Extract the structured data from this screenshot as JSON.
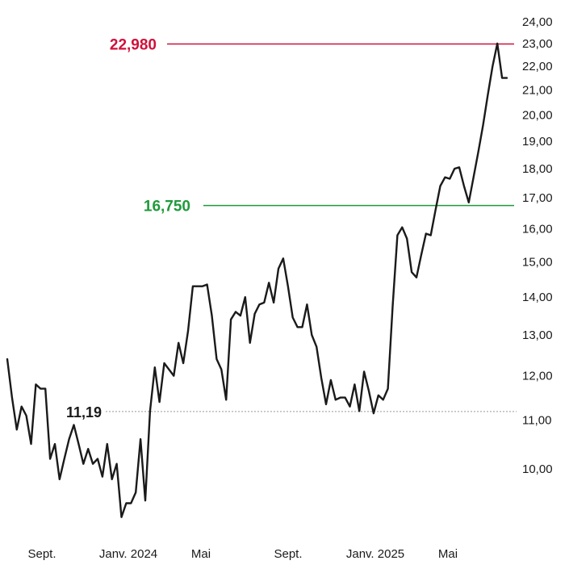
{
  "chart_data": {
    "type": "line",
    "x_tick_labels": [
      "Sept.",
      "Janv. 2024",
      "Mai",
      "Sept.",
      "Janv. 2025",
      "Mai"
    ],
    "y_tick_labels": [
      "24,00",
      "23,00",
      "22,00",
      "21,00",
      "20,00",
      "19,00",
      "18,00",
      "17,00",
      "16,00",
      "15,00",
      "14,00",
      "13,00",
      "12,00",
      "11,00",
      "10,00"
    ],
    "y_scale": "log",
    "ylim": [
      9.0,
      24.0
    ],
    "grid": false,
    "reference_lines": [
      {
        "label": "22,980",
        "value": 22.98,
        "color": "#d0103a"
      },
      {
        "label": "16,750",
        "value": 16.75,
        "color": "#1f9a3a"
      },
      {
        "label": "11,19",
        "value": 11.19,
        "color": "#999999",
        "dotted": true
      }
    ],
    "series": [
      {
        "color": "#1a1a1a",
        "values": [
          12.4,
          11.5,
          10.8,
          11.3,
          11.1,
          10.5,
          11.8,
          11.7,
          11.7,
          10.2,
          10.5,
          9.8,
          10.2,
          10.6,
          10.9,
          10.5,
          10.1,
          10.4,
          10.1,
          10.2,
          9.85,
          10.5,
          9.8,
          10.1,
          9.1,
          9.35,
          9.35,
          9.55,
          10.6,
          9.4,
          11.2,
          12.2,
          11.4,
          12.3,
          12.15,
          12.0,
          12.8,
          12.3,
          13.1,
          14.3,
          14.3,
          14.3,
          14.35,
          13.5,
          12.4,
          12.15,
          11.45,
          13.4,
          13.6,
          13.5,
          14.0,
          12.8,
          13.55,
          13.8,
          13.85,
          14.4,
          13.85,
          14.8,
          15.1,
          14.3,
          13.45,
          13.2,
          13.2,
          13.8,
          13.0,
          12.7,
          11.95,
          11.35,
          11.9,
          11.45,
          11.5,
          11.5,
          11.3,
          11.8,
          11.2,
          12.1,
          11.65,
          11.15,
          11.55,
          11.45,
          11.7,
          13.75,
          15.8,
          16.05,
          15.7,
          14.7,
          14.55,
          15.2,
          15.85,
          15.8,
          16.6,
          17.4,
          17.7,
          17.65,
          18.0,
          18.05,
          17.4,
          16.85,
          17.7,
          18.6,
          19.6,
          20.8,
          22.0,
          23.0,
          21.5,
          21.5
        ]
      }
    ]
  }
}
